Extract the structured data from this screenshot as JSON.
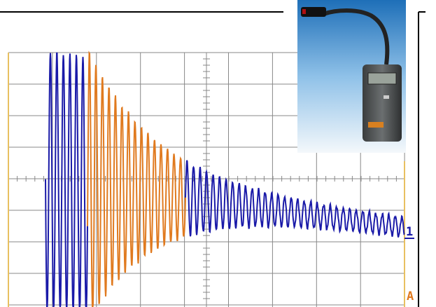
{
  "markers": {
    "channel": "1",
    "trigger": "A"
  }
}
